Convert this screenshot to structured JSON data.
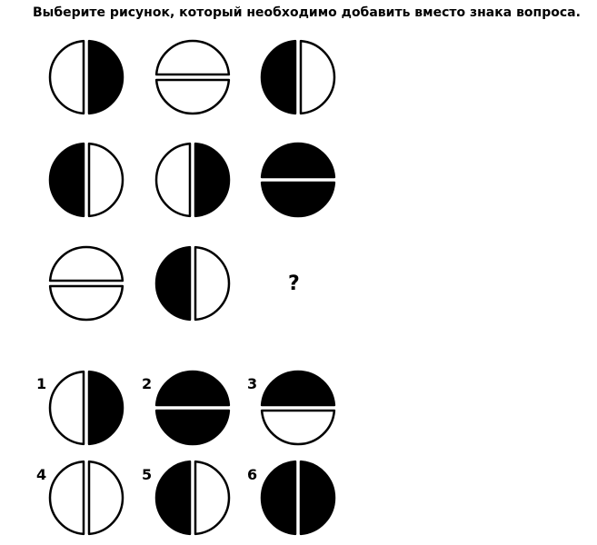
{
  "title": "Выберите рисунок, который необходимо добавить вместо знака вопроса.",
  "question_mark": "?",
  "colors": {
    "fill": "#000000",
    "background": "#ffffff"
  },
  "matrix": [
    [
      "v-left-white-right-black",
      "h-top-white-bottom-white",
      "v-left-black-right-white"
    ],
    [
      "v-left-black-right-white",
      "v-left-white-right-black",
      "h-top-black-bottom-black"
    ],
    [
      "h-top-white-bottom-white",
      "v-left-black-right-white",
      "question"
    ]
  ],
  "options": [
    {
      "number": "1",
      "pattern": "v-left-white-right-black"
    },
    {
      "number": "2",
      "pattern": "h-top-black-bottom-black"
    },
    {
      "number": "3",
      "pattern": "h-top-black-bottom-white"
    },
    {
      "number": "4",
      "pattern": "v-left-white-right-white"
    },
    {
      "number": "5",
      "pattern": "v-left-black-right-white"
    },
    {
      "number": "6",
      "pattern": "v-left-black-right-black"
    }
  ]
}
